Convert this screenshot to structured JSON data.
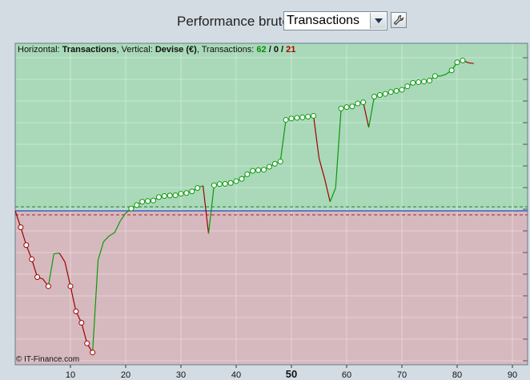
{
  "header": {
    "title": "Performance brute",
    "select_value": "Transactions"
  },
  "info": {
    "horizontal_label": "Horizontal:",
    "horizontal_value": "Transactions",
    "vertical_label": "Vertical:",
    "vertical_value": "Devise (€)",
    "transactions_label": "Transactions:",
    "count_positive": "62",
    "count_zero": "0",
    "count_negative": "21",
    "sep": "/"
  },
  "credit": "© IT-Finance.com",
  "colors": {
    "positive_zone": "#a9d9b9",
    "negative_zone": "#d6b9be",
    "up_line": "#0a9a0a",
    "down_line": "#a00000",
    "zero_line": "#3e5fd0"
  },
  "chart_data": {
    "type": "line",
    "xlabel": "",
    "ylabel": "",
    "xlim": [
      0,
      92
    ],
    "ylim": [
      -700,
      750
    ],
    "xticks": [
      10,
      20,
      30,
      40,
      50,
      60,
      70,
      80,
      90
    ],
    "xtick_labels": [
      "10",
      "20",
      "30",
      "40",
      "50",
      "60",
      "70",
      "80",
      "90"
    ],
    "highlight_tick": "50",
    "grid": true,
    "zero_level": 0,
    "x": [
      0,
      1,
      2,
      3,
      4,
      5,
      6,
      7,
      8,
      9,
      10,
      11,
      12,
      13,
      14,
      15,
      16,
      17,
      18,
      19,
      20,
      21,
      22,
      23,
      24,
      25,
      26,
      27,
      28,
      29,
      30,
      31,
      32,
      33,
      34,
      35,
      36,
      37,
      38,
      39,
      40,
      41,
      42,
      43,
      44,
      45,
      46,
      47,
      48,
      49,
      50,
      51,
      52,
      53,
      54,
      55,
      56,
      57,
      58,
      59,
      60,
      61,
      62,
      63,
      64,
      65,
      66,
      67,
      68,
      69,
      70,
      71,
      72,
      73,
      74,
      75,
      76,
      77,
      78,
      79,
      80,
      81,
      82,
      83
    ],
    "y": [
      0,
      -72,
      -150,
      -212,
      -290,
      -298,
      -330,
      -188,
      -185,
      -224,
      -330,
      -440,
      -490,
      -580,
      -620,
      -215,
      -135,
      -110,
      -95,
      -45,
      -10,
      10,
      25,
      40,
      43,
      45,
      60,
      65,
      67,
      68,
      75,
      78,
      85,
      100,
      110,
      -100,
      112,
      117,
      118,
      122,
      130,
      140,
      160,
      175,
      178,
      180,
      193,
      206,
      216,
      398,
      404,
      407,
      409,
      412,
      416,
      230,
      142,
      40,
      100,
      448,
      454,
      457,
      470,
      475,
      365,
      500,
      507,
      512,
      520,
      525,
      530,
      545,
      560,
      563,
      566,
      570,
      590,
      590,
      598,
      615,
      650,
      658,
      648,
      645
    ],
    "marker": [
      false,
      true,
      true,
      true,
      true,
      false,
      true,
      false,
      false,
      false,
      true,
      true,
      true,
      true,
      true,
      false,
      false,
      false,
      false,
      false,
      false,
      true,
      true,
      true,
      true,
      true,
      true,
      true,
      true,
      true,
      true,
      true,
      true,
      true,
      false,
      false,
      true,
      true,
      true,
      true,
      true,
      true,
      true,
      true,
      true,
      true,
      true,
      true,
      true,
      true,
      true,
      true,
      true,
      true,
      true,
      false,
      false,
      false,
      false,
      true,
      true,
      true,
      true,
      true,
      false,
      true,
      true,
      true,
      true,
      true,
      true,
      true,
      true,
      true,
      true,
      true,
      true,
      false,
      false,
      true,
      true,
      true,
      false,
      false
    ]
  }
}
